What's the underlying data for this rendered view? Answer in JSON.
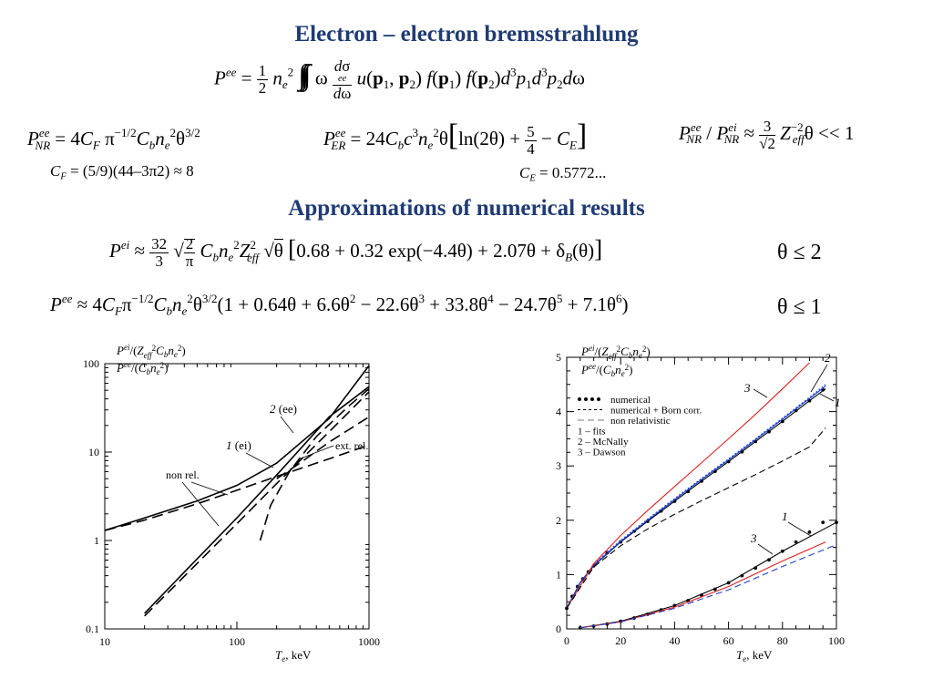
{
  "titles": {
    "main": "Electron – electron bremsstrahlung",
    "approx": "Approximations of numerical results"
  },
  "constants": {
    "cf": "C",
    "cf_sub": "F",
    "cf_value": " = (5/9)(44–3π2) ≈ 8",
    "ce": "C",
    "ce_sub": "E",
    "ce_value": " = 0.5772..."
  },
  "conditions": {
    "ei": "θ ≤ 2",
    "ee": "θ ≤ 1"
  },
  "chart_data": [
    {
      "type": "line",
      "scale": "log-log",
      "xlabel": "Te,  keV",
      "xlim": [
        10,
        1000
      ],
      "ylim": [
        0.1,
        100
      ],
      "xticks": [
        "10",
        "100",
        "1000"
      ],
      "yticks": [
        "0.1",
        "1",
        "10",
        "100"
      ],
      "ylabels": [
        "P^ei/(Z_eff^2 C_b n_e^2)",
        "P^ee/(C_b n_e^2)"
      ],
      "annotations": [
        "2 (ee)",
        "1 (ei)",
        "ext. rel.",
        "non rel."
      ],
      "series": [
        {
          "name": "1 (ei)",
          "style": "solid",
          "x": [
            10,
            20,
            50,
            100,
            200,
            500,
            1000
          ],
          "y": [
            1.3,
            1.8,
            2.8,
            4.2,
            7.5,
            24,
            95
          ]
        },
        {
          "name": "2 (ee)",
          "style": "solid",
          "x": [
            20,
            50,
            100,
            200,
            500,
            1000
          ],
          "y": [
            0.15,
            0.62,
            1.8,
            5.5,
            25,
            55
          ]
        },
        {
          "style": "dashed",
          "x": [
            10,
            20,
            50,
            100,
            200,
            500,
            1000
          ],
          "y": [
            1.3,
            1.7,
            2.6,
            3.7,
            5.3,
            8.4,
            12
          ]
        },
        {
          "style": "dashed",
          "x": [
            20,
            50,
            100,
            200,
            500,
            1000
          ],
          "y": [
            0.14,
            0.55,
            1.55,
            4.4,
            17,
            48
          ]
        },
        {
          "style": "dashed",
          "x": [
            200,
            300,
            500,
            1000
          ],
          "y": [
            5,
            7.5,
            13,
            25
          ]
        },
        {
          "style": "dashed",
          "x": [
            150,
            180,
            250,
            400,
            700,
            1000
          ],
          "y": [
            1.0,
            2.5,
            6,
            15,
            33,
            52
          ]
        }
      ]
    },
    {
      "type": "line",
      "xlabel": "Te, keV",
      "xlim": [
        0,
        100
      ],
      "ylim": [
        0,
        5
      ],
      "xticks": [
        "0",
        "20",
        "40",
        "60",
        "80",
        "100"
      ],
      "yticks": [
        "0",
        "1",
        "2",
        "3",
        "4",
        "5"
      ],
      "ylabels": [
        "P^ei/(Z_eff^2 C_b n_e^2)",
        "P^ee/(C_b n_e^2)"
      ],
      "legend": [
        "numerical",
        "numerical + Born corr.",
        "non relativistic",
        "1 – fits",
        "2 – McNally",
        "3 – Dawson"
      ],
      "annotations": [
        "3",
        "2",
        "1",
        "1",
        "3"
      ],
      "series": [
        {
          "name": "numerical",
          "style": "dots",
          "color": "#000000",
          "x": [
            0,
            2,
            4,
            6,
            8,
            10,
            15,
            20,
            25,
            30,
            35,
            40,
            45,
            50,
            55,
            60,
            65,
            70,
            75,
            80,
            85,
            90,
            95
          ],
          "y": [
            0.38,
            0.6,
            0.78,
            0.92,
            1.05,
            1.16,
            1.4,
            1.6,
            1.8,
            1.98,
            2.17,
            2.35,
            2.53,
            2.72,
            2.9,
            3.08,
            3.26,
            3.45,
            3.63,
            3.82,
            4.02,
            4.2,
            4.4
          ]
        },
        {
          "style": "solid",
          "color": "#000000",
          "x": [
            0,
            5,
            10,
            20,
            30,
            40,
            50,
            60,
            70,
            80,
            90,
            96
          ],
          "y": [
            0.38,
            0.85,
            1.16,
            1.6,
            1.98,
            2.35,
            2.72,
            3.08,
            3.45,
            3.82,
            4.2,
            4.42
          ]
        },
        {
          "name": "McNally",
          "style": "solid",
          "color": "#1a3fd0",
          "x": [
            0,
            5,
            10,
            20,
            30,
            40,
            50,
            60,
            70,
            80,
            90,
            96
          ],
          "y": [
            0.38,
            0.86,
            1.17,
            1.61,
            2.0,
            2.38,
            2.75,
            3.11,
            3.48,
            3.86,
            4.24,
            4.47
          ]
        },
        {
          "name": "numerical + Born corr.",
          "style": "dotted",
          "color": "#1a3fd0",
          "x": [
            0,
            10,
            20,
            30,
            40,
            50,
            60,
            70,
            80,
            90,
            96
          ],
          "y": [
            0.4,
            1.19,
            1.63,
            2.02,
            2.4,
            2.77,
            3.13,
            3.5,
            3.88,
            4.26,
            4.5
          ]
        },
        {
          "name": "Dawson",
          "style": "solid",
          "color": "#e02020",
          "x": [
            0,
            10,
            20,
            30,
            40,
            50,
            60,
            70,
            80,
            90
          ],
          "y": [
            0.38,
            1.2,
            1.72,
            2.18,
            2.62,
            3.06,
            3.5,
            3.95,
            4.42,
            4.9
          ]
        },
        {
          "name": "non relativistic",
          "style": "dashed",
          "color": "#000000",
          "x": [
            0,
            10,
            20,
            30,
            40,
            50,
            60,
            70,
            80,
            90,
            96
          ],
          "y": [
            0.38,
            1.14,
            1.53,
            1.84,
            2.11,
            2.36,
            2.6,
            2.84,
            3.09,
            3.35,
            3.7
          ]
        },
        {
          "name": "numerical ee",
          "style": "dots",
          "color": "#000000",
          "x": [
            5,
            10,
            15,
            20,
            25,
            30,
            35,
            40,
            45,
            50,
            55,
            60,
            65,
            70,
            75,
            80,
            85,
            90,
            95,
            100
          ],
          "y": [
            0.02,
            0.05,
            0.09,
            0.14,
            0.2,
            0.27,
            0.35,
            0.43,
            0.52,
            0.62,
            0.73,
            0.85,
            0.98,
            1.12,
            1.27,
            1.43,
            1.6,
            1.78,
            1.96,
            1.96
          ]
        },
        {
          "style": "solid",
          "color": "#000000",
          "x": [
            5,
            20,
            40,
            60,
            80,
            100
          ],
          "y": [
            0.02,
            0.14,
            0.43,
            0.85,
            1.43,
            1.96
          ]
        },
        {
          "style": "solid",
          "color": "#e02020",
          "x": [
            5,
            20,
            40,
            60,
            80,
            96
          ],
          "y": [
            0.02,
            0.13,
            0.4,
            0.78,
            1.25,
            1.6
          ]
        },
        {
          "style": "dashed",
          "color": "#1a3fd0",
          "x": [
            5,
            20,
            40,
            60,
            80,
            100
          ],
          "y": [
            0.02,
            0.13,
            0.38,
            0.72,
            1.15,
            1.55
          ]
        }
      ]
    }
  ]
}
